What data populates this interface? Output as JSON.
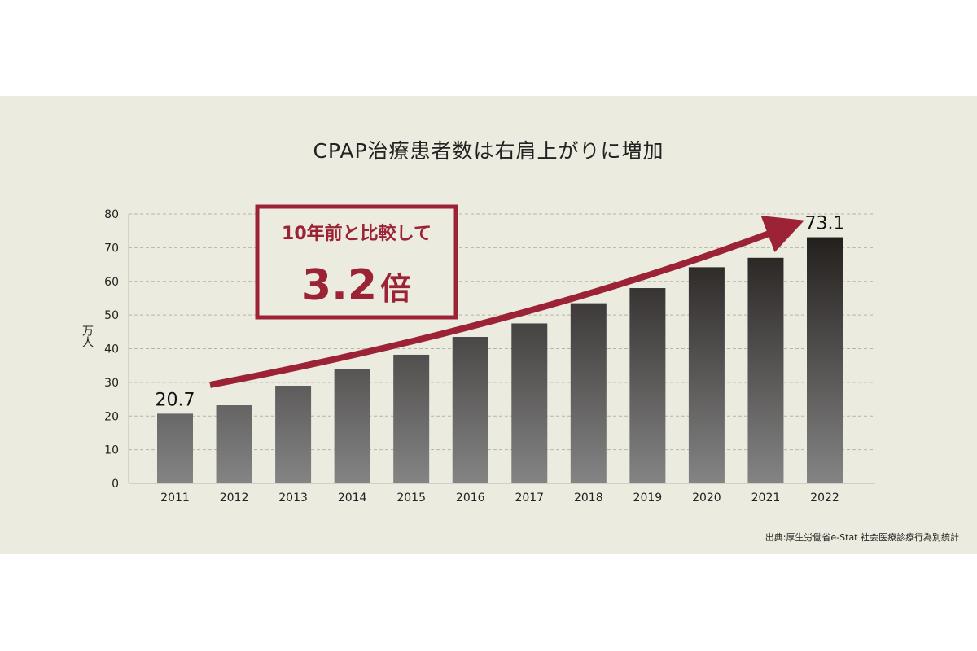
{
  "chart_data": {
    "type": "bar",
    "title": "CPAP治療患者数は右肩上がりに増加",
    "ylabel": "万人",
    "xlabel": "",
    "ylim": [
      0,
      80
    ],
    "yticks": [
      0,
      10,
      20,
      30,
      40,
      50,
      60,
      70,
      80
    ],
    "categories": [
      "2011",
      "2012",
      "2013",
      "2014",
      "2015",
      "2016",
      "2017",
      "2018",
      "2019",
      "2020",
      "2021",
      "2022"
    ],
    "values": [
      20.7,
      23.2,
      29.0,
      34.0,
      38.2,
      43.5,
      47.5,
      53.5,
      58.0,
      64.2,
      67.0,
      73.1
    ],
    "data_labels": [
      {
        "category": "2011",
        "text": "20.7"
      },
      {
        "category": "2022",
        "text": "73.1"
      }
    ],
    "grid": "horizontal-dashed",
    "annotation": {
      "line1": "10年前と比較して",
      "number": "3.2",
      "unit": "倍"
    },
    "trend_arrow": true,
    "source": "出典:厚生労働省e-Stat 社会医療診療行為別統計"
  },
  "colors": {
    "background": "#ecebdf",
    "accent": "#9b2335",
    "bar_top": "#231f1d",
    "bar_bottom": "#848484"
  }
}
